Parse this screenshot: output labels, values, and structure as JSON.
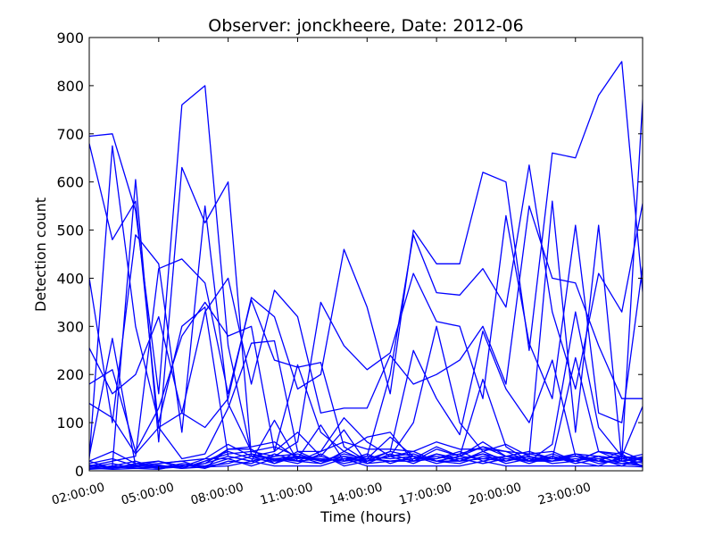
{
  "chart_data": {
    "type": "line",
    "title": "Observer: jonckheere, Date: 2012-06",
    "xlabel": "Time (hours)",
    "ylabel": "Detection count",
    "xlim": [
      0,
      23.9
    ],
    "ylim": [
      0,
      900
    ],
    "xticks": [
      0,
      3,
      6,
      9,
      12,
      15,
      18,
      21
    ],
    "xtick_labels": [
      "02:00:00",
      "05:00:00",
      "08:00:00",
      "11:00:00",
      "14:00:00",
      "17:00:00",
      "20:00:00",
      "23:00:00"
    ],
    "yticks": [
      0,
      100,
      200,
      300,
      400,
      500,
      600,
      700,
      800,
      900
    ],
    "ytick_labels": [
      "0",
      "100",
      "200",
      "300",
      "400",
      "500",
      "600",
      "700",
      "800",
      "900"
    ],
    "grid": false,
    "line_color": "#0000ff",
    "series": [
      {
        "values": [
          695,
          700,
          540,
          160,
          760,
          800,
          260,
          35,
          22,
          28,
          22,
          30,
          24,
          40,
          30,
          25,
          35,
          50,
          30,
          28,
          25,
          35,
          30,
          25,
          850
        ]
      },
      {
        "values": [
          680,
          480,
          560,
          90,
          120,
          90,
          150,
          360,
          320,
          170,
          200,
          460,
          340,
          160,
          500,
          430,
          430,
          620,
          600,
          250,
          660,
          650,
          780,
          850,
          320
        ]
      },
      {
        "values": [
          5,
          10,
          605,
          60,
          630,
          515,
          600,
          30,
          25,
          30,
          20,
          25,
          30,
          200,
          490,
          370,
          365,
          420,
          340,
          635,
          330,
          170,
          410,
          330,
          580
        ]
      },
      {
        "values": [
          400,
          100,
          490,
          430,
          80,
          550,
          140,
          40,
          30,
          60,
          350,
          260,
          210,
          245,
          410,
          310,
          300,
          150,
          530,
          265,
          150,
          510,
          120,
          100,
          460
        ]
      },
      {
        "values": [
          255,
          160,
          200,
          320,
          120,
          330,
          400,
          180,
          375,
          320,
          120,
          130,
          130,
          240,
          180,
          200,
          230,
          300,
          180,
          550,
          400,
          390,
          260,
          150,
          150
        ]
      },
      {
        "values": [
          10,
          20,
          30,
          420,
          440,
          390,
          160,
          355,
          230,
          215,
          225,
          50,
          20,
          40,
          250,
          150,
          75,
          290,
          170,
          100,
          230,
          30,
          20,
          40,
          20
        ]
      },
      {
        "values": [
          180,
          210,
          40,
          130,
          280,
          350,
          280,
          300,
          40,
          220,
          80,
          40,
          20,
          30,
          100,
          300,
          100,
          40,
          20,
          30,
          560,
          80,
          510,
          20,
          30
        ]
      },
      {
        "values": [
          25,
          675,
          300,
          100,
          300,
          340,
          30,
          20,
          105,
          20,
          40,
          110,
          60,
          30,
          35,
          20,
          30,
          190,
          50,
          20,
          55,
          330,
          90,
          30,
          145
        ]
      },
      {
        "values": [
          140,
          110,
          35,
          90,
          25,
          35,
          130,
          265,
          270,
          40,
          20,
          35,
          25,
          70,
          30,
          20,
          20,
          25,
          30,
          20,
          25,
          20,
          40,
          30,
          25
        ]
      },
      {
        "values": [
          20,
          40,
          15,
          20,
          10,
          15,
          45,
          50,
          60,
          25,
          95,
          20,
          25,
          20,
          20,
          45,
          30,
          50,
          40,
          20,
          30,
          20,
          30,
          25,
          35
        ]
      },
      {
        "values": [
          30,
          275,
          10,
          15,
          20,
          25,
          55,
          30,
          40,
          80,
          30,
          85,
          15,
          20,
          25,
          50,
          30,
          60,
          30,
          40,
          25,
          235,
          40,
          20,
          25
        ]
      },
      {
        "values": [
          15,
          25,
          10,
          20,
          5,
          20,
          35,
          40,
          50,
          30,
          15,
          40,
          70,
          80,
          20,
          35,
          20,
          40,
          55,
          30,
          20,
          30,
          25,
          30,
          20
        ]
      },
      {
        "values": [
          5,
          10,
          20,
          5,
          15,
          10,
          25,
          35,
          25,
          20,
          25,
          20,
          30,
          25,
          30,
          15,
          25,
          35,
          25,
          20,
          35,
          20,
          30,
          15,
          10
        ]
      },
      {
        "values": [
          10,
          5,
          15,
          10,
          10,
          15,
          30,
          20,
          30,
          35,
          20,
          25,
          20,
          30,
          40,
          20,
          30,
          25,
          20,
          35,
          25,
          30,
          15,
          25,
          15
        ]
      },
      {
        "values": [
          8,
          15,
          5,
          10,
          5,
          20,
          40,
          25,
          20,
          25,
          30,
          15,
          25,
          20,
          25,
          30,
          20,
          35,
          15,
          25,
          20,
          25,
          20,
          20,
          10
        ]
      },
      {
        "values": [
          20,
          5,
          10,
          15,
          20,
          5,
          20,
          15,
          35,
          20,
          15,
          30,
          15,
          35,
          20,
          25,
          40,
          20,
          30,
          15,
          30,
          15,
          25,
          10,
          30
        ]
      },
      {
        "values": [
          5,
          10,
          5,
          8,
          10,
          10,
          15,
          30,
          15,
          30,
          25,
          20,
          35,
          15,
          30,
          20,
          15,
          30,
          20,
          30,
          15,
          20,
          10,
          30,
          5
        ]
      },
      {
        "values": [
          12,
          8,
          12,
          5,
          8,
          25,
          25,
          10,
          25,
          15,
          35,
          10,
          20,
          30,
          15,
          35,
          25,
          15,
          25,
          20,
          20,
          35,
          20,
          15,
          20
        ]
      },
      {
        "values": [
          3,
          6,
          8,
          12,
          5,
          8,
          10,
          20,
          10,
          10,
          10,
          25,
          10,
          10,
          10,
          10,
          10,
          20,
          10,
          10,
          10,
          10,
          10,
          10,
          8
        ]
      },
      {
        "values": [
          6,
          3,
          5,
          3,
          12,
          5,
          45,
          45,
          15,
          40,
          40,
          60,
          45,
          45,
          40,
          60,
          45,
          45,
          40,
          35,
          40,
          20,
          40,
          35,
          5
        ]
      }
    ]
  }
}
